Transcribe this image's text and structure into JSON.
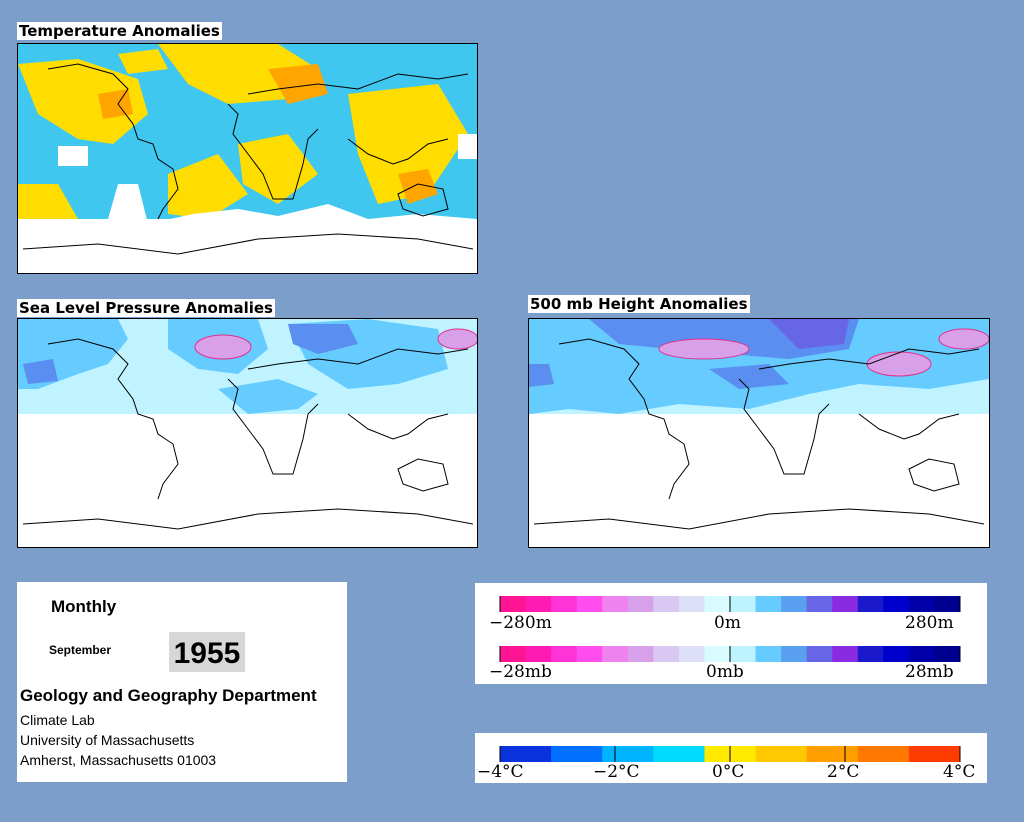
{
  "panels": {
    "temperature": {
      "title": "Temperature Anomalies"
    },
    "slp": {
      "title": "Sea Level Pressure Anomalies"
    },
    "height500": {
      "title": "500 mb Height Anomalies"
    }
  },
  "info": {
    "period": "Monthly",
    "month": "September",
    "year": "1955",
    "department": "Geology and Geography Department",
    "lines": [
      "Climate Lab",
      "University of Massachusetts",
      "Amherst, Massachusetts 01003"
    ]
  },
  "legend_height": {
    "labels": [
      "−280m",
      "0m",
      "280m"
    ],
    "colors": [
      "#ff1493",
      "#ff1ab3",
      "#ff33d6",
      "#ff4df0",
      "#ee82ee",
      "#d8a0e8",
      "#d9c8f2",
      "#dde0f8",
      "#d8fbff",
      "#bdf2ff",
      "#66ccff",
      "#5aa0f0",
      "#6666e6",
      "#8a2be2",
      "#1a1acc",
      "#0000cc",
      "#0000a8",
      "#000090"
    ]
  },
  "legend_pressure": {
    "labels": [
      "−28mb",
      "0mb",
      "28mb"
    ]
  },
  "legend_temp": {
    "labels": [
      "−4°C",
      "−2°C",
      "0°C",
      "2°C",
      "4°C"
    ],
    "colors": [
      "#0a33dd",
      "#0070ff",
      "#00b4ff",
      "#00dcff",
      "#ffea00",
      "#ffc800",
      "#ffa000",
      "#ff7800",
      "#ff3c00"
    ]
  }
}
